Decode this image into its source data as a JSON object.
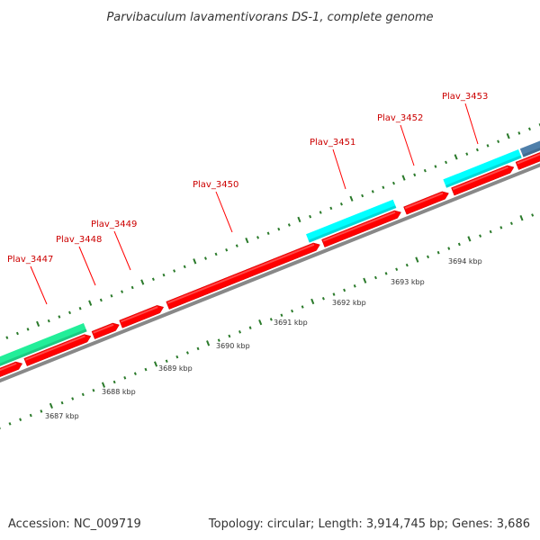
{
  "title": "Parvibaculum lavamentivorans DS-1, complete genome",
  "footer": {
    "accession": "Accession: NC_009719",
    "summary": "Topology: circular; Length: 3,914,745 bp; Genes: 3,686"
  },
  "colors": {
    "forward_gene": "#ff0000",
    "forward_gene_highlight": "#ff7a7a",
    "cds_feature": "#00ffff",
    "rna_feature": "#22ee99",
    "other_feature": "#4f7faa",
    "axis": "#888888",
    "tick": "#2a7a2a",
    "label_line": "#ff0000"
  },
  "gene_labels": [
    {
      "id": "Plav_3447",
      "text": "Plav_3447"
    },
    {
      "id": "Plav_3448",
      "text": "Plav_3448"
    },
    {
      "id": "Plav_3449",
      "text": "Plav_3449"
    },
    {
      "id": "Plav_3450",
      "text": "Plav_3450"
    },
    {
      "id": "Plav_3451",
      "text": "Plav_3451"
    },
    {
      "id": "Plav_3452",
      "text": "Plav_3452"
    },
    {
      "id": "Plav_3453",
      "text": "Plav_3453"
    }
  ],
  "scale_labels": [
    "3687 kbp",
    "3688 kbp",
    "3689 kbp",
    "3690 kbp",
    "3691 kbp",
    "3692 kbp",
    "3693 kbp",
    "3694 kbp"
  ]
}
